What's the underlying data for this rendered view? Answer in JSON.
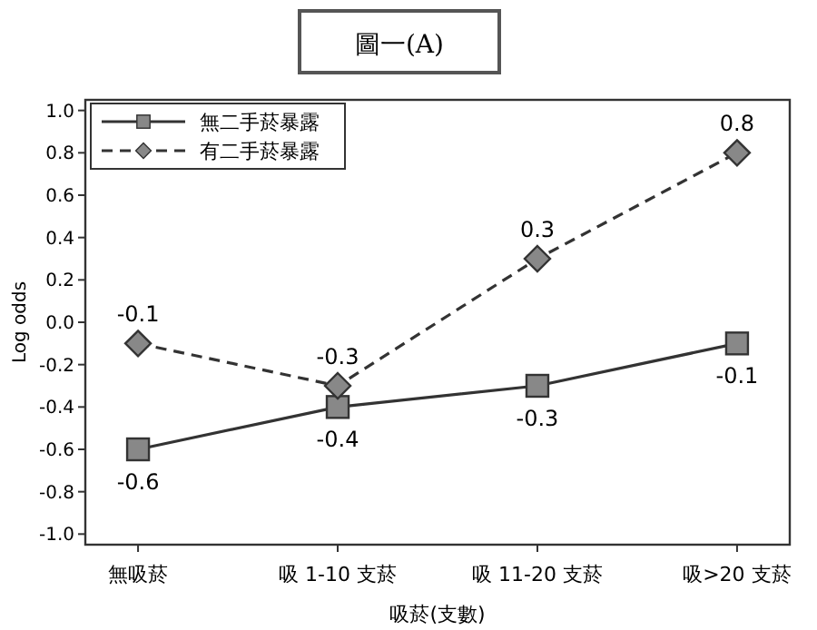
{
  "chart_data": {
    "type": "line",
    "title": "圖一(A)",
    "xlabel": "吸菸(支數)",
    "ylabel": "Log odds",
    "categories": [
      "無吸菸",
      "吸 1-10 支菸",
      "吸 11-20 支菸",
      "吸>20 支菸"
    ],
    "series": [
      {
        "name": "無二手菸暴露",
        "color": "#333333",
        "values": [
          -0.6,
          -0.4,
          -0.3,
          -0.1
        ],
        "marker": "square",
        "line_style": "solid"
      },
      {
        "name": "有二手菸暴露",
        "color": "#333333",
        "values": [
          -0.1,
          -0.3,
          0.3,
          0.8
        ],
        "marker": "diamond",
        "line_style": "dashed"
      }
    ],
    "ylim": [
      -1.05,
      1.05
    ],
    "yticks": [
      {
        "value": -1.0,
        "label": "-1.0"
      },
      {
        "value": -0.8,
        "label": "-0.8"
      },
      {
        "value": -0.6,
        "label": "-0.6"
      },
      {
        "value": -0.4,
        "label": "-0.4"
      },
      {
        "value": -0.2,
        "label": "-0.2"
      },
      {
        "value": 0.0,
        "label": "0.0"
      },
      {
        "value": 0.2,
        "label": "0.2"
      },
      {
        "value": 0.4,
        "label": "0.4"
      },
      {
        "value": 0.6,
        "label": "0.6"
      },
      {
        "value": 0.8,
        "label": "0.8"
      },
      {
        "value": 1.0,
        "label": "1.0"
      }
    ],
    "data_labels": true,
    "legend": "top left",
    "grid": false
  }
}
